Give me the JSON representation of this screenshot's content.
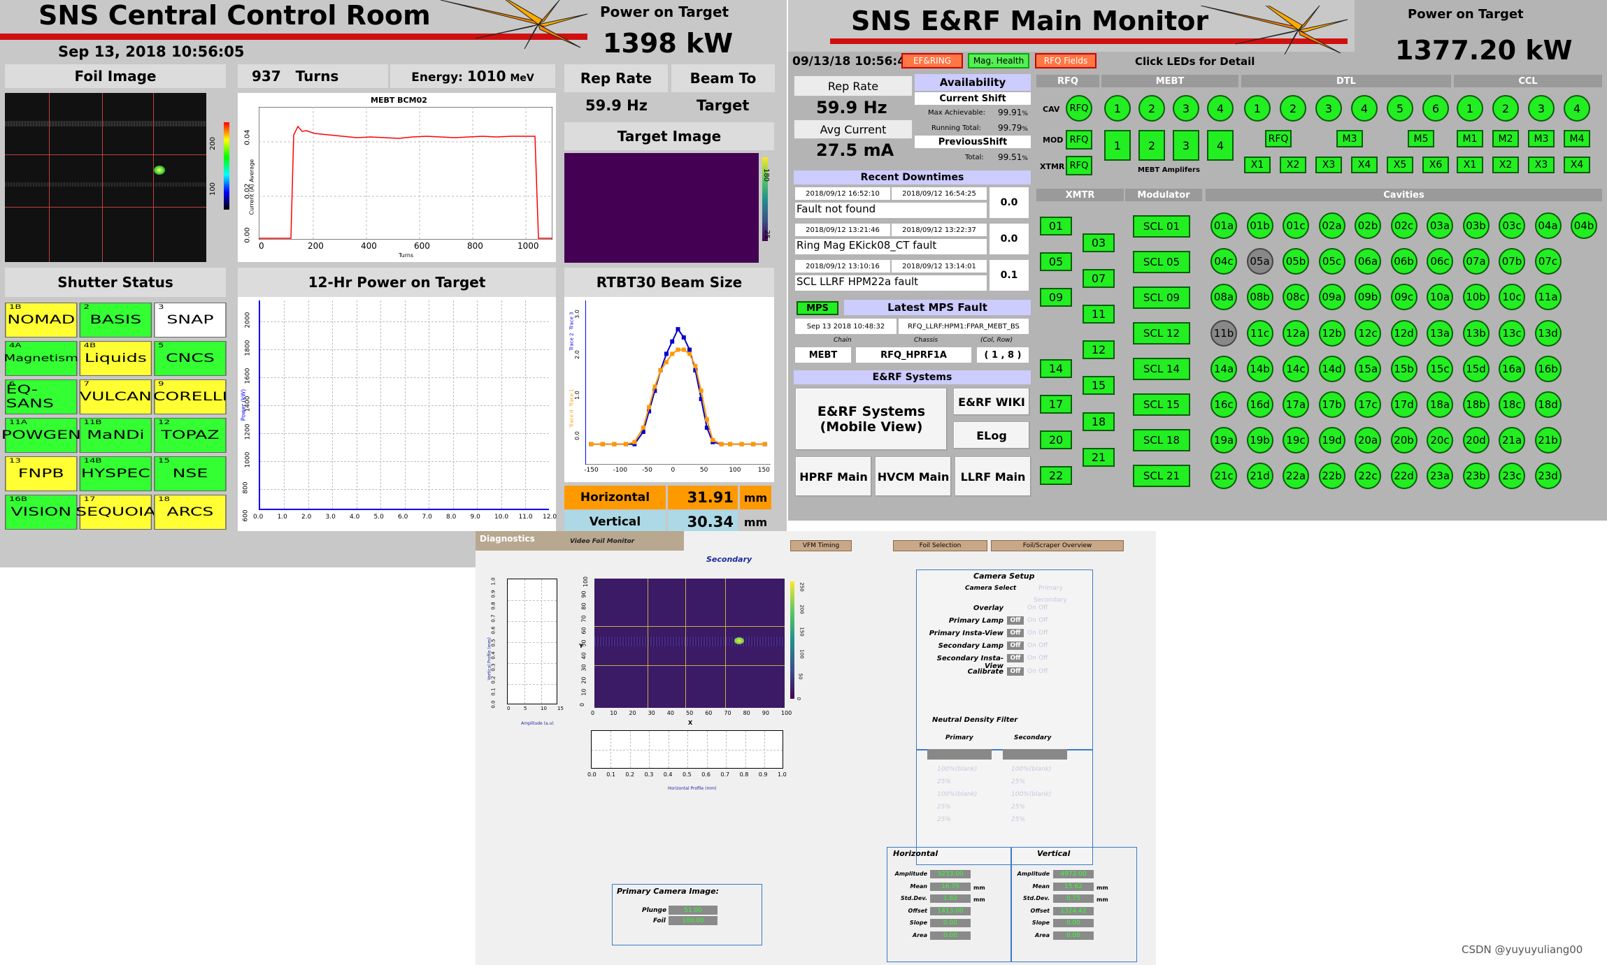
{
  "ccr": {
    "title": "SNS Central Control Room",
    "datetime": "Sep 13, 2018 10:56:05",
    "power_label": "Power on Target",
    "power_value": "1398 kW",
    "foil_title": "Foil Image",
    "turns_value": "937",
    "turns_label": "Turns",
    "energy_label": "Energy:",
    "energy_value": "1010",
    "energy_unit": "MeV",
    "rep_rate_label": "Rep Rate",
    "rep_rate_value": "59.9 Hz",
    "beam_to_label": "Beam To",
    "beam_to_value": "Target",
    "target_image_title": "Target Image",
    "target_ticks": [
      "180",
      "25"
    ],
    "foil_scale_ticks": [
      "200",
      "100"
    ],
    "bcm_title": "MEBT BCM02",
    "bcm_ylabel": "Current (A) Average",
    "bcm_xlabel": "Turns",
    "bcm_yticks": [
      "0.04",
      "0.02",
      "0.00"
    ],
    "bcm_xticks": [
      "0",
      "200",
      "400",
      "600",
      "800",
      "1000"
    ],
    "shutter_title": "Shutter Status",
    "shutters": [
      {
        "num": "1B",
        "name": "NOMAD",
        "color": "#ffff33"
      },
      {
        "num": "2",
        "name": "BASIS",
        "color": "#33ff33"
      },
      {
        "num": "3",
        "name": "SNAP",
        "color": "#ffffff"
      },
      {
        "num": "4A",
        "name": "Magnetism",
        "color": "#33ff33"
      },
      {
        "num": "4B",
        "name": "Liquids",
        "color": "#ffff33"
      },
      {
        "num": "5",
        "name": "CNCS",
        "color": "#33ff33"
      },
      {
        "num": "6",
        "name": "EQ-SANS",
        "color": "#33ff33"
      },
      {
        "num": "7",
        "name": "VULCAN",
        "color": "#ffff33"
      },
      {
        "num": "9",
        "name": "CORELLI",
        "color": "#ffff33"
      },
      {
        "num": "11A",
        "name": "POWGEN",
        "color": "#33ff33"
      },
      {
        "num": "11B",
        "name": "MaNDi",
        "color": "#33ff33"
      },
      {
        "num": "12",
        "name": "TOPAZ",
        "color": "#33ff33"
      },
      {
        "num": "13",
        "name": "FNPB",
        "color": "#ffff33"
      },
      {
        "num": "14B",
        "name": "HYSPEC",
        "color": "#33ff33"
      },
      {
        "num": "15",
        "name": "NSE",
        "color": "#33ff33"
      },
      {
        "num": "16B",
        "name": "VISION",
        "color": "#33ff33"
      },
      {
        "num": "17",
        "name": "SEQUOIA",
        "color": "#ffff33"
      },
      {
        "num": "18",
        "name": "ARCS",
        "color": "#ffff33"
      }
    ],
    "power_chart_title": "12-Hr Power on Target",
    "power_chart_ylabel": "Power (kW)",
    "power_chart_yticks": [
      "2000",
      "1800",
      "1600",
      "1400",
      "1200",
      "1000",
      "800",
      "600"
    ],
    "power_chart_xticks": [
      "0.0",
      "1.0",
      "2.0",
      "3.0",
      "4.0",
      "5.0",
      "6.0",
      "7.0",
      "8.0",
      "9.0",
      "10.0",
      "11.0",
      "12.0"
    ],
    "beam_size_title": "RTBT30 Beam Size",
    "beam_size_ylabel_1": "Trace 0",
    "beam_size_ylabel_2": "Trace 1",
    "beam_size_ylabel_3": "Trace 2",
    "beam_size_ylabel_4": "Trace 3",
    "beam_size_yticks": [
      "3.0",
      "2.0",
      "1.0",
      "0.0"
    ],
    "beam_size_xticks": [
      "-150",
      "-100",
      "-50",
      "0",
      "50",
      "100",
      "150"
    ],
    "horizontal_label": "Horizontal",
    "horizontal_value": "31.91",
    "vertical_label": "Vertical",
    "vertical_value": "30.34",
    "size_unit": "mm"
  },
  "erf": {
    "title": "SNS E&RF Main Monitor",
    "datetime": "09/13/18 10:56:48",
    "badge_efring": "EF&RING",
    "badge_mag": "Mag. Health",
    "badge_rfq": "RFQ Fields",
    "click_hint": "Click LEDs for Detail",
    "power_label": "Power on Target",
    "power_value": "1377.20 kW",
    "rep_rate_label": "Rep Rate",
    "rep_rate_value": "59.9 Hz",
    "avg_current_label": "Avg Current",
    "avg_current_value": "27.5 mA",
    "availability_label": "Availability",
    "current_shift_label": "Current Shift",
    "max_ach_label": "Max Achievable:",
    "max_ach_value": "99.91",
    "running_total_label": "Running Total:",
    "running_total_value": "99.79",
    "previous_shift_label": "PreviousShift",
    "total_label": "Total:",
    "total_value": "99.51",
    "pct": "%",
    "downtimes_title": "Recent Downtimes",
    "downtimes": [
      {
        "start": "2018/09/12 16:52:10",
        "end": "2018/09/12 16:54:25",
        "desc": "Fault not found",
        "hours": "0.0"
      },
      {
        "start": "2018/09/12 13:21:46",
        "end": "2018/09/12 13:22:37",
        "desc": "Ring Mag EKick08_CT fault",
        "hours": "0.0"
      },
      {
        "start": "2018/09/12 13:10:16",
        "end": "2018/09/12 13:14:01",
        "desc": "SCL LLRF HPM22a fault",
        "hours": "0.1"
      }
    ],
    "mps_label": "MPS",
    "latest_mps_label": "Latest MPS Fault",
    "mps_time": "Sep 13 2018 10:48:32",
    "mps_pv": "RFQ_LLRF:HPM1:FPAR_MEBT_BS",
    "chain_label": "Chain",
    "chassis_label": "Chassis",
    "colrow_label": "(Col, Row)",
    "chain_value": "MEBT",
    "chassis_value": "RFQ_HPRF1A",
    "colrow_value": "( 1 , 8 )",
    "systems_title": "E&RF Systems",
    "mobile_view_line1": "E&RF Systems",
    "mobile_view_line2": "(Mobile View)",
    "wiki_btn": "E&RF WIKI",
    "elog_btn": "ELog",
    "hprf_btn": "HPRF Main",
    "hvcm_btn": "HVCM Main",
    "llrf_btn": "LLRF Main",
    "sections": {
      "rfq": "RFQ",
      "mebt": "MEBT",
      "dtl": "DTL",
      "ccl": "CCL",
      "xmtr": "XMTR",
      "modulator": "Modulator",
      "cavities": "Cavities"
    },
    "row_cav": "CAV",
    "row_mod": "MOD",
    "row_xmtr": "XTMR",
    "rfq_text": "RFQ",
    "mebt_cav": [
      "1",
      "2",
      "3",
      "4"
    ],
    "mebt_mod": [
      "1",
      "2",
      "3",
      "4"
    ],
    "mebt_amps_label": "MEBT Amplifers",
    "dtl_cav": [
      "1",
      "2",
      "3",
      "4",
      "5",
      "6"
    ],
    "dtl_mod": [
      "RFQ",
      "M3",
      "M5"
    ],
    "dtl_x": [
      "X1",
      "X2",
      "X3",
      "X4",
      "X5",
      "X6"
    ],
    "ccl_cav": [
      "1",
      "2",
      "3",
      "4"
    ],
    "ccl_mod": [
      "M1",
      "M2",
      "M3",
      "M4"
    ],
    "ccl_x": [
      "X1",
      "X2",
      "X3",
      "X4"
    ],
    "xmtr_left": [
      "01",
      "05",
      "09",
      "14",
      "17",
      "20",
      "22"
    ],
    "xmtr_right": [
      "03",
      "07",
      "11",
      "12",
      "15",
      "18",
      "21"
    ],
    "modulators": [
      "SCL 01",
      "SCL 05",
      "SCL 09",
      "SCL 12",
      "SCL 14",
      "SCL 15",
      "SCL 18",
      "SCL 21"
    ],
    "cavities": [
      [
        "01a",
        "01b",
        "01c",
        "02a",
        "02b",
        "02c",
        "03a",
        "03b",
        "03c",
        "04a",
        "04b"
      ],
      [
        "04c",
        "05a",
        "05b",
        "05c",
        "06a",
        "06b",
        "06c",
        "07a",
        "07b",
        "07c"
      ],
      [
        "08a",
        "08b",
        "08c",
        "09a",
        "09b",
        "09c",
        "10a",
        "10b",
        "10c",
        "11a"
      ],
      [
        "11b",
        "11c",
        "12a",
        "12b",
        "12c",
        "12d",
        "13a",
        "13b",
        "13c",
        "13d"
      ],
      [
        "14a",
        "14b",
        "14c",
        "14d",
        "15a",
        "15b",
        "15c",
        "15d",
        "16a",
        "16b"
      ],
      [
        "16c",
        "16d",
        "17a",
        "17b",
        "17c",
        "17d",
        "18a",
        "18b",
        "18c",
        "18d"
      ],
      [
        "19a",
        "19b",
        "19c",
        "19d",
        "20a",
        "20b",
        "20c",
        "20d",
        "21a",
        "21b"
      ],
      [
        "21c",
        "21d",
        "22a",
        "22b",
        "22c",
        "22d",
        "23a",
        "23b",
        "23c",
        "23d"
      ]
    ],
    "gray_cavities": [
      "05a",
      "11b"
    ]
  },
  "diag": {
    "title": "Diagnostics",
    "subtitle": "Video Foil Monitor",
    "vfm_timing_btn": "VFM Timing",
    "foil_selection_btn": "Foil Selection",
    "foil_overview_btn": "Foil/Scraper Overview",
    "secondary_label": "Secondary",
    "x_label": "X",
    "y_label": "Y",
    "amplitude_label": "Amplitude (a.u)",
    "horiz_profile_label": "Horizontal Profile (mm)",
    "vert_profile_label": "Vertical Profile (mm)",
    "image_ticks": [
      "0",
      "10",
      "20",
      "30",
      "40",
      "50",
      "60",
      "70",
      "80",
      "90",
      "100"
    ],
    "amp_ticks": [
      "0",
      "5",
      "10",
      "15"
    ],
    "colorbar_ticks": [
      "250",
      "200",
      "150",
      "100",
      "50",
      "0"
    ],
    "profile_ticks": [
      "0.0",
      "0.1",
      "0.2",
      "0.3",
      "0.4",
      "0.5",
      "0.6",
      "0.7",
      "0.8",
      "0.9",
      "1.0"
    ],
    "camera_setup_title": "Camera Setup",
    "camera_select_label": "Camera Select",
    "camera_primary": "Primary",
    "camera_secondary": "Secondary",
    "camera_rows": [
      "Overlay",
      "Primary Lamp",
      "Primary Insta-View",
      "Secondary Lamp",
      "Secondary Insta-View",
      "Calibrate"
    ],
    "off_label": "Off",
    "on_label": "On",
    "nd_filter_title": "Neutral Density Filter",
    "nd_primary": "Primary",
    "nd_secondary": "Secondary",
    "nd_options": [
      "100%(blank)",
      "25%",
      "100%(blank)",
      "25%",
      "25%"
    ],
    "primary_image_title": "Primary Camera Image:",
    "plunge_label": "Plunge",
    "plunge_value": "51.00",
    "foil_label": "Foil",
    "foil_value": "100.00",
    "horizontal_title": "Horizontal",
    "vertical_title": "Vertical",
    "stat_labels": [
      "Amplitude",
      "Mean",
      "Std.Dev.",
      "Offset",
      "Slope",
      "Area"
    ],
    "horizontal_values": [
      "3233.00",
      "16.75",
      "1.62",
      "1413.00",
      "0.00",
      "0.00"
    ],
    "vertical_values": [
      "4972.00",
      "15.62",
      "0.75",
      "1324.42",
      "0.00",
      "0.00"
    ],
    "mm_unit": "mm"
  },
  "watermark": "CSDN @yuyuyuliang00",
  "colors": {
    "ccr_bg": "#c8c8c8",
    "red_bar": "#d01010",
    "green_led": "#22ee22",
    "yellow_shutter": "#ffff33",
    "beam_purple": "#440154",
    "horizontal_orange": "#ff9900",
    "vertical_blue": "#add8e6"
  },
  "beam_profile_chart": {
    "type": "line",
    "x": [
      -150,
      -130,
      -110,
      -90,
      -75,
      -60,
      -50,
      -40,
      -30,
      -20,
      -10,
      0,
      10,
      20,
      30,
      40,
      50,
      60,
      75,
      90,
      110,
      130,
      150
    ],
    "series": [
      {
        "color": "#0000cc",
        "values": [
          0.0,
          0.0,
          0.0,
          0.0,
          0.0,
          0.3,
          0.8,
          1.3,
          1.8,
          2.2,
          2.5,
          2.8,
          2.6,
          2.3,
          1.8,
          1.1,
          0.4,
          0.05,
          0.0,
          0.0,
          0.0,
          0.0,
          0.0
        ]
      },
      {
        "color": "#ff9900",
        "values": [
          0.0,
          0.0,
          0.0,
          0.0,
          0.05,
          0.4,
          0.9,
          1.4,
          1.8,
          2.0,
          2.2,
          2.3,
          2.3,
          2.2,
          1.9,
          1.3,
          0.6,
          0.1,
          0.0,
          0.0,
          0.0,
          0.0,
          0.0
        ]
      }
    ],
    "xlim": [
      -160,
      160
    ],
    "ylim": [
      -0.5,
      3.5
    ]
  }
}
